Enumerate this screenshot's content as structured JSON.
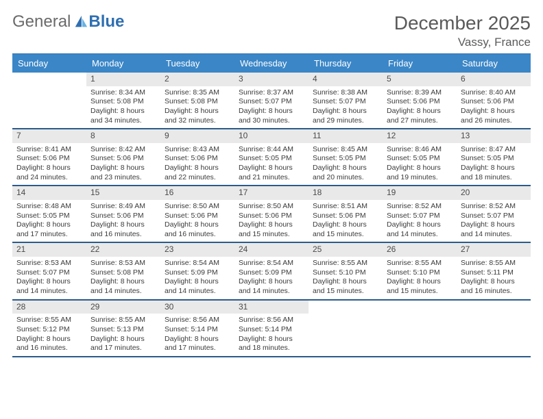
{
  "brand": {
    "general": "General",
    "blue": "Blue"
  },
  "title": {
    "month": "December 2025",
    "location": "Vassy, France"
  },
  "colors": {
    "header_bg": "#3b86c7",
    "header_text": "#ffffff",
    "week_divider": "#2a5b8a",
    "daynum_bg": "#e9e9e9",
    "page_bg": "#ffffff",
    "logo_general": "#6a6a6a",
    "logo_blue": "#2f6fb0",
    "title_color": "#5a5a5a"
  },
  "typography": {
    "month_title_size": 28,
    "location_size": 17,
    "header_cell_size": 13,
    "daynum_size": 12,
    "body_size": 10.5
  },
  "daynames": [
    "Sunday",
    "Monday",
    "Tuesday",
    "Wednesday",
    "Thursday",
    "Friday",
    "Saturday"
  ],
  "weeks": [
    [
      {
        "empty": true
      },
      {
        "num": "1",
        "sunrise": "8:34 AM",
        "sunset": "5:08 PM",
        "daylight": "8 hours and 34 minutes."
      },
      {
        "num": "2",
        "sunrise": "8:35 AM",
        "sunset": "5:08 PM",
        "daylight": "8 hours and 32 minutes."
      },
      {
        "num": "3",
        "sunrise": "8:37 AM",
        "sunset": "5:07 PM",
        "daylight": "8 hours and 30 minutes."
      },
      {
        "num": "4",
        "sunrise": "8:38 AM",
        "sunset": "5:07 PM",
        "daylight": "8 hours and 29 minutes."
      },
      {
        "num": "5",
        "sunrise": "8:39 AM",
        "sunset": "5:06 PM",
        "daylight": "8 hours and 27 minutes."
      },
      {
        "num": "6",
        "sunrise": "8:40 AM",
        "sunset": "5:06 PM",
        "daylight": "8 hours and 26 minutes."
      }
    ],
    [
      {
        "num": "7",
        "sunrise": "8:41 AM",
        "sunset": "5:06 PM",
        "daylight": "8 hours and 24 minutes."
      },
      {
        "num": "8",
        "sunrise": "8:42 AM",
        "sunset": "5:06 PM",
        "daylight": "8 hours and 23 minutes."
      },
      {
        "num": "9",
        "sunrise": "8:43 AM",
        "sunset": "5:06 PM",
        "daylight": "8 hours and 22 minutes."
      },
      {
        "num": "10",
        "sunrise": "8:44 AM",
        "sunset": "5:05 PM",
        "daylight": "8 hours and 21 minutes."
      },
      {
        "num": "11",
        "sunrise": "8:45 AM",
        "sunset": "5:05 PM",
        "daylight": "8 hours and 20 minutes."
      },
      {
        "num": "12",
        "sunrise": "8:46 AM",
        "sunset": "5:05 PM",
        "daylight": "8 hours and 19 minutes."
      },
      {
        "num": "13",
        "sunrise": "8:47 AM",
        "sunset": "5:05 PM",
        "daylight": "8 hours and 18 minutes."
      }
    ],
    [
      {
        "num": "14",
        "sunrise": "8:48 AM",
        "sunset": "5:05 PM",
        "daylight": "8 hours and 17 minutes."
      },
      {
        "num": "15",
        "sunrise": "8:49 AM",
        "sunset": "5:06 PM",
        "daylight": "8 hours and 16 minutes."
      },
      {
        "num": "16",
        "sunrise": "8:50 AM",
        "sunset": "5:06 PM",
        "daylight": "8 hours and 16 minutes."
      },
      {
        "num": "17",
        "sunrise": "8:50 AM",
        "sunset": "5:06 PM",
        "daylight": "8 hours and 15 minutes."
      },
      {
        "num": "18",
        "sunrise": "8:51 AM",
        "sunset": "5:06 PM",
        "daylight": "8 hours and 15 minutes."
      },
      {
        "num": "19",
        "sunrise": "8:52 AM",
        "sunset": "5:07 PM",
        "daylight": "8 hours and 14 minutes."
      },
      {
        "num": "20",
        "sunrise": "8:52 AM",
        "sunset": "5:07 PM",
        "daylight": "8 hours and 14 minutes."
      }
    ],
    [
      {
        "num": "21",
        "sunrise": "8:53 AM",
        "sunset": "5:07 PM",
        "daylight": "8 hours and 14 minutes."
      },
      {
        "num": "22",
        "sunrise": "8:53 AM",
        "sunset": "5:08 PM",
        "daylight": "8 hours and 14 minutes."
      },
      {
        "num": "23",
        "sunrise": "8:54 AM",
        "sunset": "5:09 PM",
        "daylight": "8 hours and 14 minutes."
      },
      {
        "num": "24",
        "sunrise": "8:54 AM",
        "sunset": "5:09 PM",
        "daylight": "8 hours and 14 minutes."
      },
      {
        "num": "25",
        "sunrise": "8:55 AM",
        "sunset": "5:10 PM",
        "daylight": "8 hours and 15 minutes."
      },
      {
        "num": "26",
        "sunrise": "8:55 AM",
        "sunset": "5:10 PM",
        "daylight": "8 hours and 15 minutes."
      },
      {
        "num": "27",
        "sunrise": "8:55 AM",
        "sunset": "5:11 PM",
        "daylight": "8 hours and 16 minutes."
      }
    ],
    [
      {
        "num": "28",
        "sunrise": "8:55 AM",
        "sunset": "5:12 PM",
        "daylight": "8 hours and 16 minutes."
      },
      {
        "num": "29",
        "sunrise": "8:55 AM",
        "sunset": "5:13 PM",
        "daylight": "8 hours and 17 minutes."
      },
      {
        "num": "30",
        "sunrise": "8:56 AM",
        "sunset": "5:14 PM",
        "daylight": "8 hours and 17 minutes."
      },
      {
        "num": "31",
        "sunrise": "8:56 AM",
        "sunset": "5:14 PM",
        "daylight": "8 hours and 18 minutes."
      },
      {
        "empty": true
      },
      {
        "empty": true
      },
      {
        "empty": true
      }
    ]
  ],
  "labels": {
    "sunrise_prefix": "Sunrise: ",
    "sunset_prefix": "Sunset: ",
    "daylight_prefix": "Daylight: "
  }
}
